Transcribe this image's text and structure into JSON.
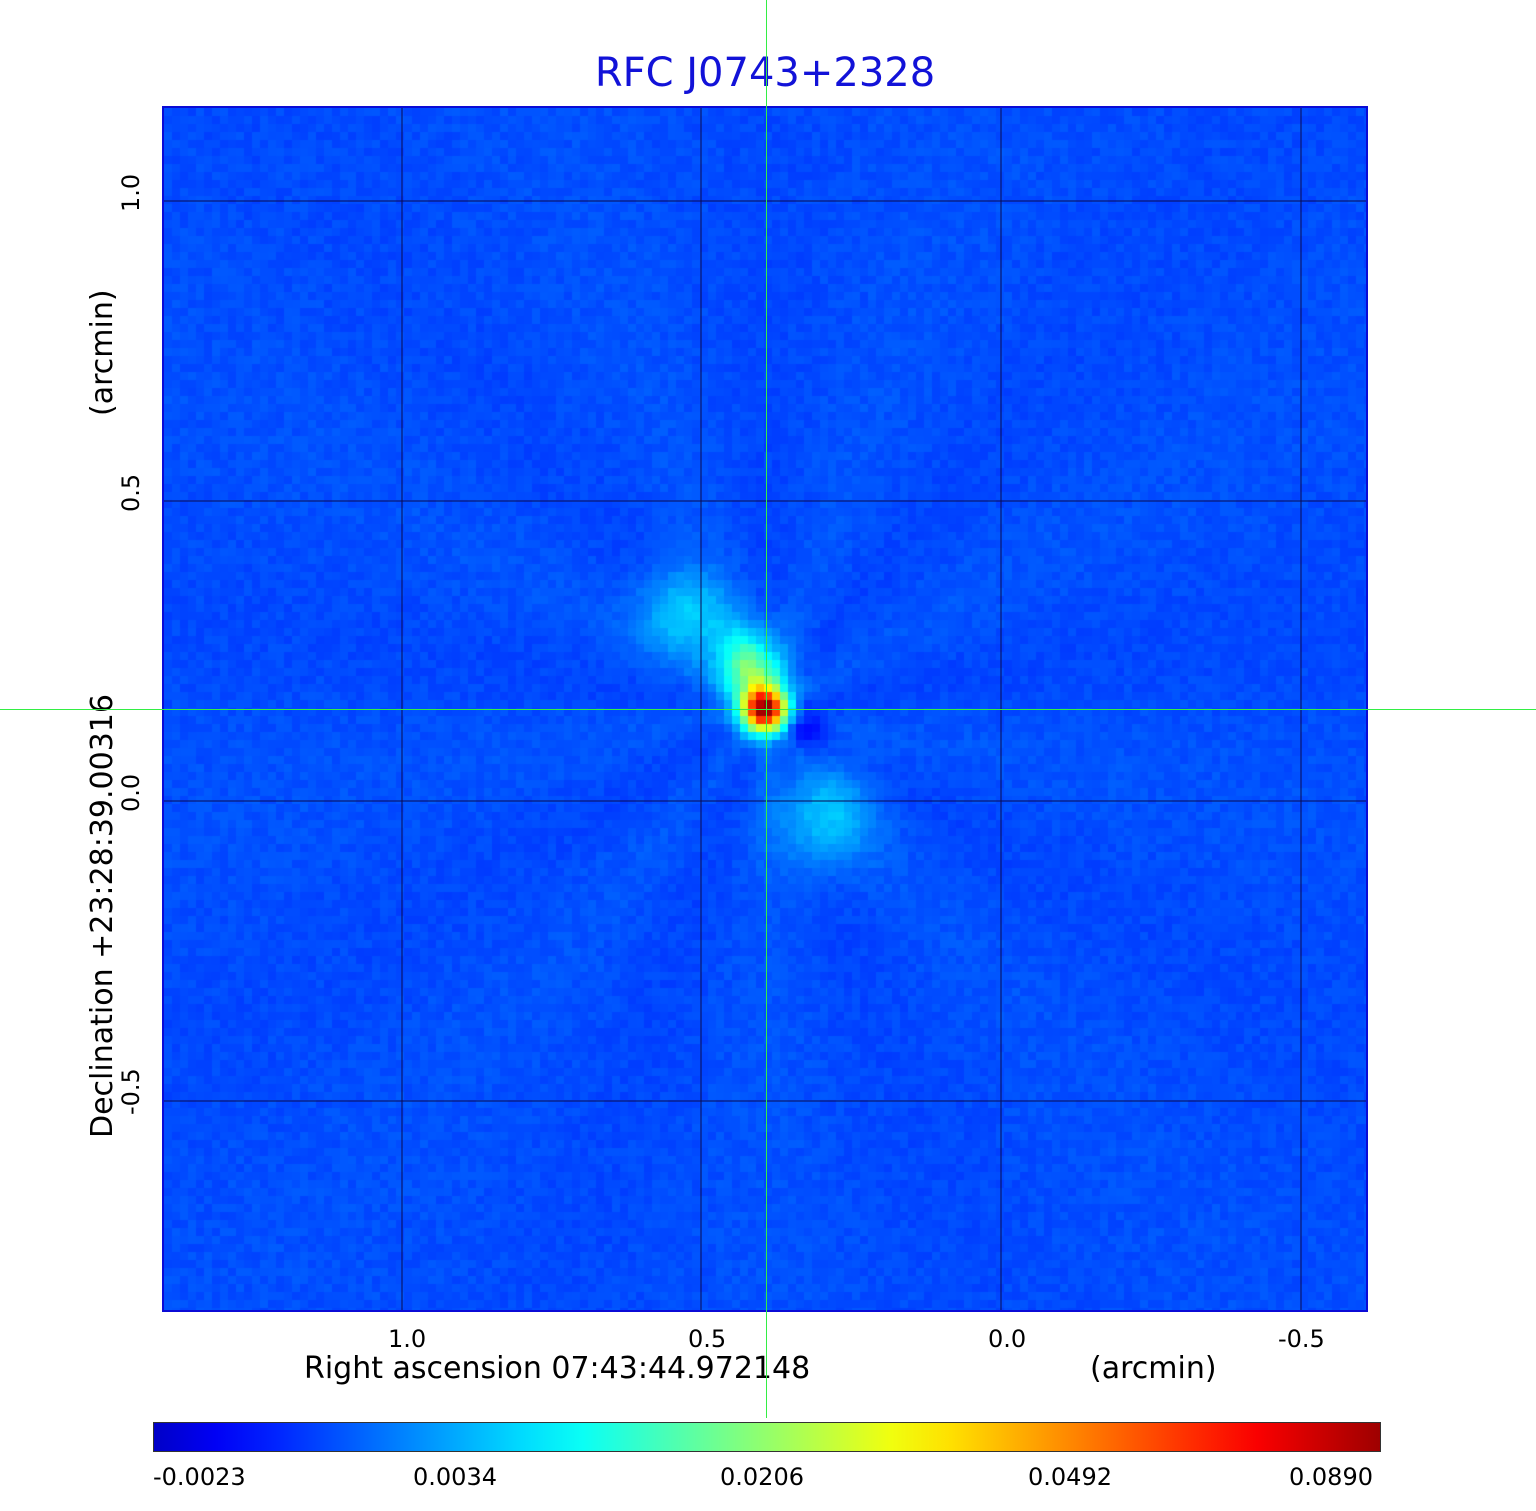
{
  "title": "RFC J0743+2328",
  "colors": {
    "title": "#1212d8",
    "frame": "#0b0bd6",
    "grid": "#0a0a50",
    "crosshair": "#33ee44",
    "background_sky": "#1656ee"
  },
  "x_axis": {
    "label": "Right ascension  07:43:44.972148",
    "unit_label": "(arcmin)",
    "ticks": [
      "1.0",
      "0.5",
      "0.0",
      "-0.5"
    ]
  },
  "y_axis": {
    "label": "Declination  +23:28:39.00316",
    "unit_label": "(arcmin)",
    "ticks": [
      "1.0",
      "0.5",
      "0.0",
      "-0.5"
    ]
  },
  "colorbar": {
    "colormap": "jet",
    "ticks": [
      "-0.0023",
      "0.0034",
      "0.0206",
      "0.0492",
      "0.0890"
    ]
  }
}
